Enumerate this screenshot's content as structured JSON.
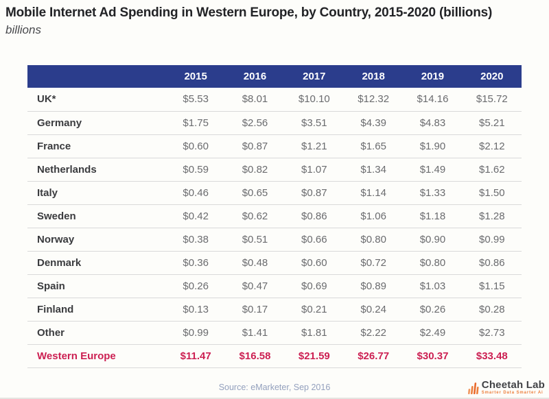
{
  "title": "Mobile Internet Ad Spending in Western Europe, by Country, 2015-2020 (billions)",
  "subtitle": "billions",
  "source_note": "Source: eMarketer, Sep 2016",
  "logo": {
    "name": "Cheetah Lab",
    "tagline": "Smarter Data Smarter Ai",
    "icon": "signal-bars-icon"
  },
  "colors": {
    "header_bg": "#2b3d8c",
    "highlight": "#cc1f52",
    "accent_orange": "#ed7d3a",
    "row_border": "#d9d9d9",
    "source_text": "#93a0bd"
  },
  "chart_data": {
    "type": "table",
    "title": "Mobile Internet Ad Spending in Western Europe, by Country, 2015-2020 (billions)",
    "unit": "billions USD",
    "columns": [
      "",
      "2015",
      "2016",
      "2017",
      "2018",
      "2019",
      "2020"
    ],
    "rows": [
      {
        "label": "UK*",
        "values": [
          "$5.53",
          "$8.01",
          "$10.10",
          "$12.32",
          "$14.16",
          "$15.72"
        ],
        "highlight": false
      },
      {
        "label": "Germany",
        "values": [
          "$1.75",
          "$2.56",
          "$3.51",
          "$4.39",
          "$4.83",
          "$5.21"
        ],
        "highlight": false
      },
      {
        "label": "France",
        "values": [
          "$0.60",
          "$0.87",
          "$1.21",
          "$1.65",
          "$1.90",
          "$2.12"
        ],
        "highlight": false
      },
      {
        "label": "Netherlands",
        "values": [
          "$0.59",
          "$0.82",
          "$1.07",
          "$1.34",
          "$1.49",
          "$1.62"
        ],
        "highlight": false
      },
      {
        "label": "Italy",
        "values": [
          "$0.46",
          "$0.65",
          "$0.87",
          "$1.14",
          "$1.33",
          "$1.50"
        ],
        "highlight": false
      },
      {
        "label": "Sweden",
        "values": [
          "$0.42",
          "$0.62",
          "$0.86",
          "$1.06",
          "$1.18",
          "$1.28"
        ],
        "highlight": false
      },
      {
        "label": "Norway",
        "values": [
          "$0.38",
          "$0.51",
          "$0.66",
          "$0.80",
          "$0.90",
          "$0.99"
        ],
        "highlight": false
      },
      {
        "label": "Denmark",
        "values": [
          "$0.36",
          "$0.48",
          "$0.60",
          "$0.72",
          "$0.80",
          "$0.86"
        ],
        "highlight": false
      },
      {
        "label": "Spain",
        "values": [
          "$0.26",
          "$0.47",
          "$0.69",
          "$0.89",
          "$1.03",
          "$1.15"
        ],
        "highlight": false
      },
      {
        "label": "Finland",
        "values": [
          "$0.13",
          "$0.17",
          "$0.21",
          "$0.24",
          "$0.26",
          "$0.28"
        ],
        "highlight": false
      },
      {
        "label": "Other",
        "values": [
          "$0.99",
          "$1.41",
          "$1.81",
          "$2.22",
          "$2.49",
          "$2.73"
        ],
        "highlight": false
      },
      {
        "label": "Western Europe",
        "values": [
          "$11.47",
          "$16.58",
          "$21.59",
          "$26.77",
          "$30.37",
          "$33.48"
        ],
        "highlight": true
      }
    ]
  }
}
